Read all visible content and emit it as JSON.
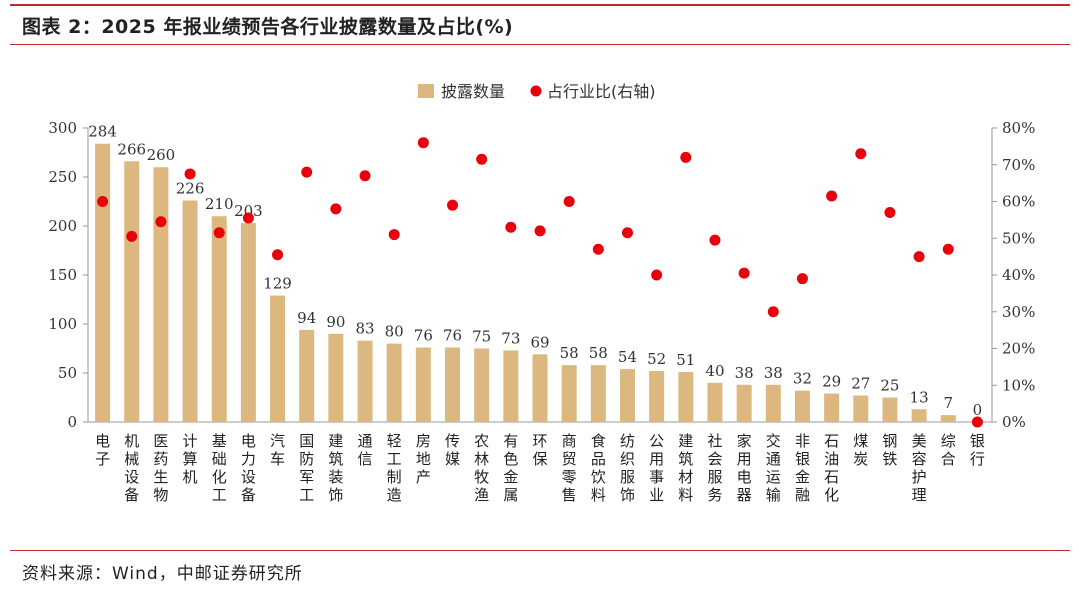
{
  "header": {
    "title": "图表 2：2025 年报业绩预告各行业披露数量及占比(%)"
  },
  "footer": {
    "source": "资料来源：Wind，中邮证券研究所"
  },
  "colors": {
    "bar": "#dcb880",
    "dot": "#e8000b",
    "rule": "#c0282d",
    "axis": "#999999"
  },
  "chart_data": {
    "type": "bar",
    "title": "2025 年报业绩预告各行业披露数量及占比(%)",
    "legend_position": "top-center",
    "categories": [
      "电子",
      "机械设备",
      "医药生物",
      "计算机",
      "基础化工",
      "电力设备",
      "汽车",
      "国防军工",
      "建筑装饰",
      "通信",
      "轻工制造",
      "房地产",
      "传媒",
      "农林牧渔",
      "有色金属",
      "环保",
      "商贸零售",
      "食品饮料",
      "纺织服饰",
      "公用事业",
      "建筑材料",
      "社会服务",
      "家用电器",
      "交通运输",
      "非银金融",
      "石油石化",
      "煤炭",
      "钢铁",
      "美容护理",
      "综合",
      "银行"
    ],
    "series": [
      {
        "name": "披露数量",
        "kind": "bar",
        "axis": "left",
        "values": [
          284,
          266,
          260,
          226,
          210,
          203,
          129,
          94,
          90,
          83,
          80,
          76,
          76,
          75,
          73,
          69,
          58,
          58,
          54,
          52,
          51,
          40,
          38,
          38,
          32,
          29,
          27,
          25,
          13,
          7,
          0
        ]
      },
      {
        "name": "占行业比(右轴)",
        "kind": "scatter",
        "axis": "right",
        "values": [
          60,
          50.5,
          54.5,
          67.5,
          51.5,
          55.5,
          45.5,
          68,
          58,
          67,
          51,
          76,
          59,
          71.5,
          53,
          52,
          60,
          47,
          51.5,
          40,
          72,
          49.5,
          40.5,
          30,
          39,
          61.5,
          73,
          57,
          45,
          47,
          0
        ]
      }
    ],
    "y_left": {
      "min": 0,
      "max": 300,
      "ticks": [
        0,
        50,
        100,
        150,
        200,
        250,
        300
      ]
    },
    "y_right": {
      "min": 0,
      "max": 80,
      "ticks": [
        "0%",
        "10%",
        "20%",
        "30%",
        "40%",
        "50%",
        "60%",
        "70%",
        "80%"
      ]
    }
  }
}
